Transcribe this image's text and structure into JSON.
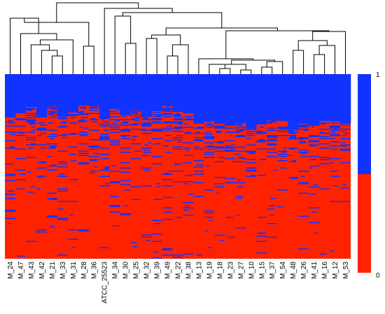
{
  "chart_data": {
    "type": "heatmap",
    "title": "",
    "xlabel": "",
    "ylabel": "",
    "columns": [
      "M_24",
      "M_47",
      "M_43",
      "M_42",
      "M_21",
      "M_33",
      "M_31",
      "M_28",
      "M_36",
      "ATCC_25523",
      "M_34",
      "M_30",
      "M_25",
      "M_32",
      "M_39",
      "M_49",
      "M_22",
      "M_38",
      "M_13",
      "M_19",
      "M_18",
      "M_23",
      "M_27",
      "M_10",
      "M_15",
      "M_37",
      "M_54",
      "M_48",
      "M_26",
      "M_41",
      "M_16",
      "M_12",
      "M_53"
    ],
    "color_scale": {
      "min": 0,
      "max": 1,
      "min_label": "0",
      "max_label": "1",
      "min_color": "#ff2200",
      "max_color": "#1133ff"
    },
    "row_dendrogram": false,
    "column_dendrogram": true
  }
}
